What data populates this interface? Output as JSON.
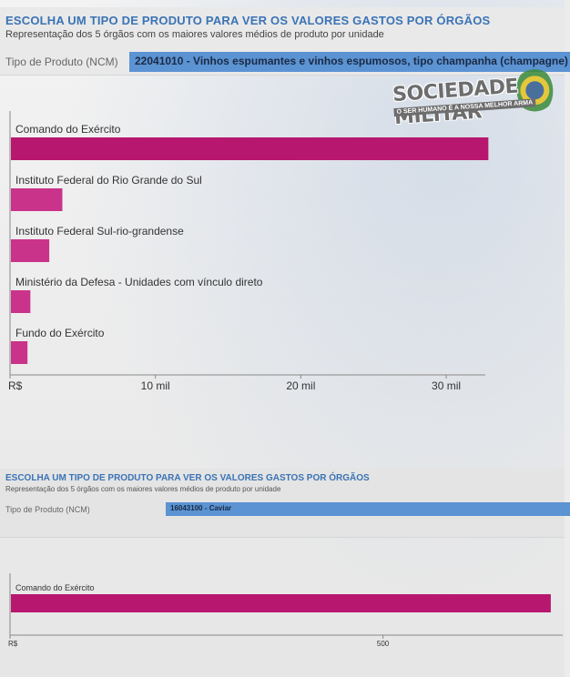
{
  "watermark": {
    "title": "SOCIEDADE MILITAR",
    "tagline": "O SER HUMANO É A NOSSA MELHOR ARMA"
  },
  "panels": [
    {
      "title": "ESCOLHA UM TIPO DE PRODUTO PARA VER OS VALORES GASTOS POR ÓRGÃOS",
      "subtitle": "Representação dos 5 órgãos com os maiores valores médios de produto por unidade",
      "ncm_label": "Tipo de Produto (NCM)",
      "ncm_value": "22041010 - Vinhos espumantes e vinhos espumosos, tipo champanha (champagne)"
    },
    {
      "title": "ESCOLHA UM TIPO DE PRODUTO PARA VER OS VALORES GASTOS POR ÓRGÃOS",
      "subtitle": "Representação dos 5 órgãos com os maiores valores médios de produto por unidade",
      "ncm_label": "Tipo de Produto (NCM)",
      "ncm_value": "16043100 - Caviar"
    }
  ],
  "chart_data": [
    {
      "type": "bar",
      "orientation": "horizontal",
      "categories": [
        "Comando do Exército",
        "Instituto Federal do Rio Grande do Sul",
        "Instituto Federal Sul-rio-grandense",
        "Ministério da Defesa - Unidades com vínculo direto",
        "Fundo do Exército"
      ],
      "values": [
        32900,
        3600,
        2700,
        1400,
        1200
      ],
      "xlim": [
        0,
        31500
      ],
      "ticks": [
        {
          "value": 0,
          "label": "R$"
        },
        {
          "value": 10000,
          "label": "10 mil"
        },
        {
          "value": 20000,
          "label": "20 mil"
        },
        {
          "value": 30000,
          "label": "30 mil"
        }
      ],
      "colors": [
        "#b8176f",
        "#c9338a",
        "#c9338a",
        "#c9338a",
        "#c9338a"
      ]
    },
    {
      "type": "bar",
      "orientation": "horizontal",
      "categories": [
        "Comando do Exército"
      ],
      "values": [
        725
      ],
      "xlim": [
        0,
        730
      ],
      "ticks": [
        {
          "value": 0,
          "label": "R$"
        },
        {
          "value": 500,
          "label": "500"
        }
      ],
      "colors": [
        "#b8176f"
      ]
    }
  ]
}
